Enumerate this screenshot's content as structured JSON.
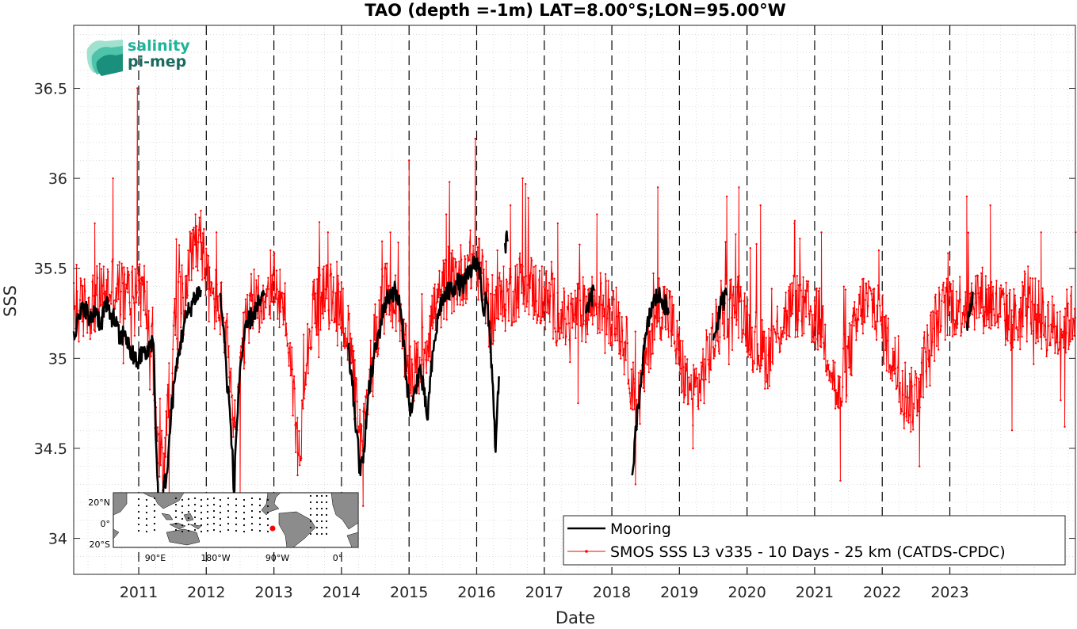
{
  "logo": {
    "line1": "salinity",
    "line2": "pi-mep",
    "color1": "#1fb39a",
    "color2": "#1a6b5e"
  },
  "inset_map": {
    "lat_labels": [
      "20°N",
      "0°",
      "20°S"
    ],
    "lon_labels": [
      "90°E",
      "180°W",
      "90°W",
      "0°"
    ],
    "marker_color": "#ff0000"
  },
  "chart_data": {
    "type": "line",
    "title": "TAO (depth =-1m) LAT=8.00°S;LON=95.00°W",
    "xlabel": "Date",
    "ylabel": "SSS",
    "xlim": [
      "2010-01-15",
      "2024-11-10"
    ],
    "ylim": [
      33.8,
      36.85
    ],
    "y_ticks": [
      34,
      34.5,
      35,
      35.5,
      36,
      36.5
    ],
    "x_ticks": [
      "2011",
      "2012",
      "2013",
      "2014",
      "2015",
      "2016",
      "2017",
      "2018",
      "2019",
      "2020",
      "2021",
      "2022",
      "2023"
    ],
    "year_lines": [
      "2011",
      "2012",
      "2013",
      "2014",
      "2015",
      "2016",
      "2017",
      "2018",
      "2019",
      "2020",
      "2021",
      "2022",
      "2023"
    ],
    "grid": true,
    "legend_position": "bottom-right",
    "series": [
      {
        "name": "Mooring",
        "color": "#000000",
        "segments": [
          [
            [
              2010.04,
              35.15
            ],
            [
              2010.12,
              35.22
            ],
            [
              2010.2,
              35.3
            ],
            [
              2010.28,
              35.2
            ],
            [
              2010.36,
              35.28
            ],
            [
              2010.44,
              35.18
            ],
            [
              2010.5,
              35.3
            ],
            [
              2010.58,
              35.25
            ],
            [
              2010.66,
              35.2
            ],
            [
              2010.72,
              35.1
            ],
            [
              2010.8,
              35.15
            ],
            [
              2010.86,
              35.05
            ],
            [
              2010.93,
              35.0
            ],
            [
              2011.0,
              34.98
            ],
            [
              2011.06,
              35.05
            ],
            [
              2011.12,
              35.0
            ],
            [
              2011.18,
              35.1
            ],
            [
              2011.22,
              35.08
            ],
            [
              2011.26,
              34.5
            ],
            [
              2011.29,
              34.2
            ],
            [
              2011.33,
              34.1
            ],
            [
              2011.38,
              34.3
            ],
            [
              2011.43,
              34.4
            ],
            [
              2011.48,
              34.7
            ],
            [
              2011.54,
              34.9
            ],
            [
              2011.6,
              35.05
            ],
            [
              2011.68,
              35.2
            ],
            [
              2011.76,
              35.28
            ],
            [
              2011.84,
              35.35
            ],
            [
              2011.92,
              35.38
            ]
          ],
          [
            [
              2012.2,
              35.35
            ],
            [
              2012.26,
              35.15
            ],
            [
              2012.3,
              34.9
            ],
            [
              2012.34,
              34.75
            ],
            [
              2012.38,
              34.5
            ],
            [
              2012.41,
              34.25
            ],
            [
              2012.44,
              34.55
            ],
            [
              2012.5,
              34.95
            ],
            [
              2012.56,
              35.1
            ],
            [
              2012.62,
              35.2
            ],
            [
              2012.7,
              35.25
            ],
            [
              2012.78,
              35.3
            ],
            [
              2012.86,
              35.35
            ]
          ],
          [
            [
              2014.1,
              35.05
            ],
            [
              2014.16,
              34.85
            ],
            [
              2014.22,
              34.6
            ],
            [
              2014.28,
              34.35
            ],
            [
              2014.33,
              34.5
            ],
            [
              2014.4,
              34.8
            ],
            [
              2014.48,
              35.0
            ],
            [
              2014.56,
              35.15
            ],
            [
              2014.62,
              35.28
            ],
            [
              2014.7,
              35.35
            ],
            [
              2014.78,
              35.38
            ],
            [
              2014.86,
              35.3
            ],
            [
              2014.92,
              35.1
            ],
            [
              2014.96,
              34.9
            ],
            [
              2015.0,
              34.75
            ],
            [
              2015.04,
              34.7
            ],
            [
              2015.1,
              34.85
            ],
            [
              2015.16,
              34.95
            ],
            [
              2015.22,
              34.8
            ],
            [
              2015.27,
              34.66
            ],
            [
              2015.32,
              34.9
            ],
            [
              2015.38,
              35.1
            ],
            [
              2015.46,
              35.3
            ],
            [
              2015.54,
              35.35
            ],
            [
              2015.62,
              35.38
            ],
            [
              2015.7,
              35.42
            ],
            [
              2015.78,
              35.4
            ],
            [
              2015.86,
              35.45
            ],
            [
              2015.94,
              35.5
            ],
            [
              2016.0,
              35.55
            ],
            [
              2016.06,
              35.45
            ],
            [
              2016.1,
              35.25
            ],
            [
              2016.14,
              35.35
            ],
            [
              2016.2,
              35.1
            ],
            [
              2016.24,
              34.85
            ],
            [
              2016.28,
              34.48
            ],
            [
              2016.33,
              34.9
            ]
          ],
          [
            [
              2016.42,
              35.64
            ],
            [
              2016.46,
              35.65
            ]
          ],
          [
            [
              2017.62,
              35.25
            ],
            [
              2017.68,
              35.32
            ],
            [
              2017.74,
              35.38
            ]
          ],
          [
            [
              2018.3,
              34.35
            ],
            [
              2018.36,
              34.6
            ],
            [
              2018.42,
              34.85
            ],
            [
              2018.48,
              35.05
            ],
            [
              2018.54,
              35.2
            ],
            [
              2018.6,
              35.3
            ],
            [
              2018.68,
              35.35
            ],
            [
              2018.76,
              35.32
            ],
            [
              2018.84,
              35.25
            ]
          ],
          [
            [
              2019.5,
              35.1
            ],
            [
              2019.56,
              35.2
            ],
            [
              2019.62,
              35.3
            ],
            [
              2019.7,
              35.35
            ]
          ],
          [
            [
              2023.25,
              35.2
            ],
            [
              2023.3,
              35.3
            ],
            [
              2023.34,
              35.37
            ]
          ]
        ]
      },
      {
        "name": "SMOS SSS L3 v335 - 10 Days - 25 km (CATDS-CPDC)",
        "color": "#ff0000",
        "marker": "dot",
        "anchors": [
          [
            2010.04,
            35.25
          ],
          [
            2010.3,
            35.3
          ],
          [
            2010.6,
            35.4
          ],
          [
            2010.8,
            35.35
          ],
          [
            2010.97,
            35.4
          ],
          [
            2011.1,
            35.35
          ],
          [
            2011.2,
            35.0
          ],
          [
            2011.28,
            34.5
          ],
          [
            2011.36,
            34.4
          ],
          [
            2011.45,
            34.8
          ],
          [
            2011.55,
            35.2
          ],
          [
            2011.7,
            35.45
          ],
          [
            2011.85,
            35.7
          ],
          [
            2011.95,
            35.6
          ],
          [
            2012.05,
            35.35
          ],
          [
            2012.2,
            35.3
          ],
          [
            2012.3,
            35.1
          ],
          [
            2012.38,
            34.7
          ],
          [
            2012.44,
            34.6
          ],
          [
            2012.52,
            35.0
          ],
          [
            2012.65,
            35.3
          ],
          [
            2012.85,
            35.35
          ],
          [
            2013.0,
            35.4
          ],
          [
            2013.15,
            35.3
          ],
          [
            2013.25,
            35.0
          ],
          [
            2013.33,
            34.6
          ],
          [
            2013.38,
            34.45
          ],
          [
            2013.46,
            35.0
          ],
          [
            2013.6,
            35.3
          ],
          [
            2013.8,
            35.35
          ],
          [
            2014.0,
            35.3
          ],
          [
            2014.12,
            35.05
          ],
          [
            2014.22,
            34.75
          ],
          [
            2014.3,
            34.45
          ],
          [
            2014.38,
            34.8
          ],
          [
            2014.5,
            35.15
          ],
          [
            2014.65,
            35.35
          ],
          [
            2014.8,
            35.3
          ],
          [
            2014.95,
            35.0
          ],
          [
            2015.05,
            34.9
          ],
          [
            2015.2,
            35.0
          ],
          [
            2015.35,
            35.25
          ],
          [
            2015.55,
            35.4
          ],
          [
            2015.75,
            35.45
          ],
          [
            2015.95,
            35.55
          ],
          [
            2016.1,
            35.45
          ],
          [
            2016.2,
            35.2
          ],
          [
            2016.3,
            35.3
          ],
          [
            2016.5,
            35.35
          ],
          [
            2016.7,
            35.45
          ],
          [
            2016.9,
            35.35
          ],
          [
            2017.1,
            35.3
          ],
          [
            2017.3,
            35.2
          ],
          [
            2017.5,
            35.25
          ],
          [
            2017.7,
            35.3
          ],
          [
            2017.9,
            35.3
          ],
          [
            2018.1,
            35.2
          ],
          [
            2018.25,
            35.0
          ],
          [
            2018.35,
            34.7
          ],
          [
            2018.42,
            34.8
          ],
          [
            2018.55,
            35.1
          ],
          [
            2018.7,
            35.3
          ],
          [
            2018.85,
            35.25
          ],
          [
            2019.0,
            35.0
          ],
          [
            2019.15,
            34.8
          ],
          [
            2019.3,
            34.85
          ],
          [
            2019.5,
            35.1
          ],
          [
            2019.7,
            35.3
          ],
          [
            2019.9,
            35.3
          ],
          [
            2020.1,
            35.1
          ],
          [
            2020.3,
            35.0
          ],
          [
            2020.5,
            35.2
          ],
          [
            2020.7,
            35.3
          ],
          [
            2020.9,
            35.25
          ],
          [
            2021.1,
            35.2
          ],
          [
            2021.25,
            34.95
          ],
          [
            2021.35,
            34.75
          ],
          [
            2021.5,
            35.0
          ],
          [
            2021.7,
            35.3
          ],
          [
            2021.9,
            35.3
          ],
          [
            2022.1,
            35.05
          ],
          [
            2022.3,
            34.85
          ],
          [
            2022.45,
            34.75
          ],
          [
            2022.6,
            34.95
          ],
          [
            2022.8,
            35.2
          ],
          [
            2023.0,
            35.3
          ],
          [
            2023.2,
            35.3
          ],
          [
            2023.4,
            35.35
          ],
          [
            2023.6,
            35.3
          ],
          [
            2023.8,
            35.25
          ],
          [
            2024.0,
            35.2
          ],
          [
            2024.2,
            35.3
          ],
          [
            2024.4,
            35.2
          ],
          [
            2024.6,
            35.15
          ],
          [
            2024.86,
            35.25
          ]
        ],
        "spikes": [
          [
            2010.08,
            35.52
          ],
          [
            2010.35,
            35.75
          ],
          [
            2010.62,
            36.0
          ],
          [
            2010.98,
            36.5
          ],
          [
            2011.45,
            34.25
          ],
          [
            2011.92,
            35.82
          ],
          [
            2012.15,
            35.7
          ],
          [
            2012.5,
            34.25
          ],
          [
            2012.95,
            35.6
          ],
          [
            2013.35,
            34.35
          ],
          [
            2013.8,
            35.7
          ],
          [
            2014.32,
            34.18
          ],
          [
            2014.6,
            35.65
          ],
          [
            2015.0,
            36.1
          ],
          [
            2015.55,
            35.8
          ],
          [
            2015.98,
            36.22
          ],
          [
            2016.5,
            35.85
          ],
          [
            2016.68,
            36.0
          ],
          [
            2017.2,
            35.75
          ],
          [
            2017.5,
            34.75
          ],
          [
            2017.78,
            35.8
          ],
          [
            2018.35,
            34.3
          ],
          [
            2018.68,
            35.95
          ],
          [
            2019.2,
            34.5
          ],
          [
            2019.7,
            35.9
          ],
          [
            2019.88,
            35.95
          ],
          [
            2020.2,
            35.85
          ],
          [
            2020.7,
            35.75
          ],
          [
            2021.1,
            35.7
          ],
          [
            2021.38,
            34.32
          ],
          [
            2021.95,
            35.6
          ],
          [
            2022.55,
            34.4
          ],
          [
            2023.25,
            35.9
          ],
          [
            2023.6,
            35.85
          ],
          [
            2023.92,
            34.6
          ],
          [
            2024.35,
            35.7
          ],
          [
            2024.7,
            34.62
          ],
          [
            2024.86,
            35.7
          ]
        ],
        "amplitude": 0.19
      }
    ]
  }
}
